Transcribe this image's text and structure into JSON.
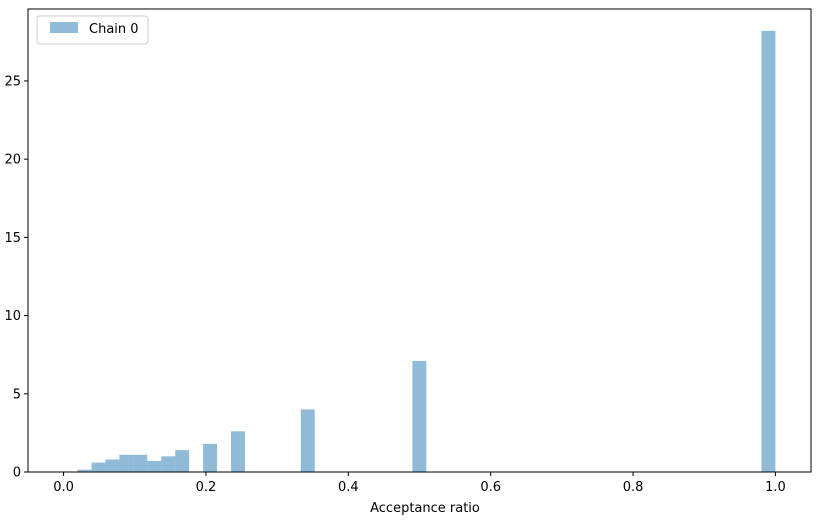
{
  "chart_data": {
    "type": "bar",
    "xlabel": "Acceptance ratio",
    "ylabel": "",
    "title": "",
    "xlim": [
      -0.05,
      1.05
    ],
    "ylim": [
      0,
      29.6
    ],
    "xticks": [
      0.0,
      0.2,
      0.4,
      0.6,
      0.8,
      1.0
    ],
    "xtick_labels": [
      "0.0",
      "0.2",
      "0.4",
      "0.6",
      "0.8",
      "1.0"
    ],
    "yticks": [
      0,
      5,
      10,
      15,
      20,
      25
    ],
    "ytick_labels": [
      "0",
      "5",
      "10",
      "15",
      "20",
      "25"
    ],
    "grid": false,
    "legend_position": "top-left",
    "series": [
      {
        "name": "Chain 0",
        "color": "#1f77b4",
        "alpha": 0.5,
        "bin_width": 0.0196,
        "bins": [
          {
            "x": 0.0196,
            "height": 0.15
          },
          {
            "x": 0.0392,
            "height": 0.6
          },
          {
            "x": 0.0588,
            "height": 0.8
          },
          {
            "x": 0.0784,
            "height": 1.1
          },
          {
            "x": 0.098,
            "height": 1.1
          },
          {
            "x": 0.1176,
            "height": 0.7
          },
          {
            "x": 0.1372,
            "height": 1.0
          },
          {
            "x": 0.1568,
            "height": 1.4
          },
          {
            "x": 0.196,
            "height": 1.8
          },
          {
            "x": 0.2352,
            "height": 2.6
          },
          {
            "x": 0.3332,
            "height": 4.0
          },
          {
            "x": 0.49,
            "height": 7.1
          },
          {
            "x": 0.9804,
            "height": 28.2
          }
        ]
      }
    ]
  }
}
